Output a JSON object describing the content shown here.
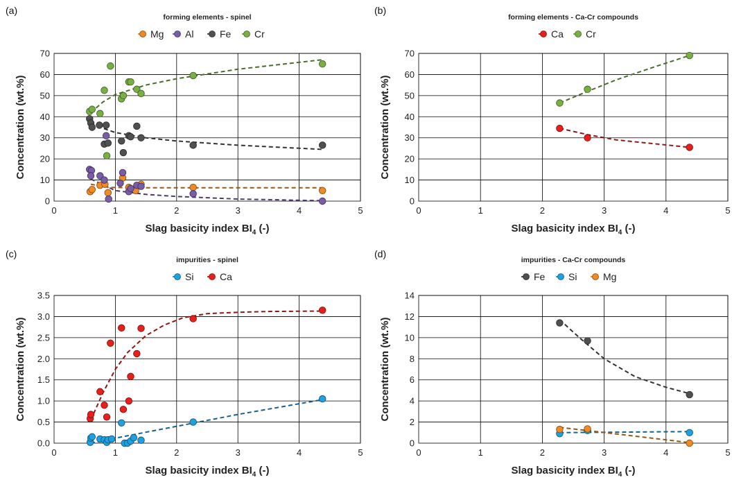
{
  "chart_data": [
    {
      "panel": "(a)",
      "type": "scatter",
      "title": "forming elements - spinel",
      "xlabel": "Slag basicity index BI",
      "xlabel_sub": "4",
      "xlabel_suffix": " (-)",
      "ylabel": "Concentration (wt.%)",
      "xlim": [
        0,
        5
      ],
      "ylim": [
        0,
        70
      ],
      "xticks": [
        "0",
        "1",
        "2",
        "3",
        "4",
        "5"
      ],
      "yticks": [
        "0",
        "10",
        "20",
        "30",
        "40",
        "50",
        "60",
        "70"
      ],
      "grid": true,
      "legend_position": "top",
      "series": [
        {
          "name": "Mg",
          "color": "#f08a24",
          "x": [
            0.59,
            0.62,
            0.75,
            0.83,
            0.88,
            1.12,
            1.22,
            1.25,
            1.33,
            1.42,
            2.27,
            4.38
          ],
          "y": [
            4.5,
            5.5,
            7.5,
            8.0,
            4.0,
            11.0,
            6.5,
            5.5,
            5.0,
            8.0,
            6.5,
            5.0
          ],
          "trend": {
            "x": [
              0.6,
              0.9,
              1.3,
              2.0,
              3.0,
              4.38
            ],
            "y": [
              8.0,
              6.5,
              6.3,
              6.3,
              6.3,
              6.3
            ]
          }
        },
        {
          "name": "Al",
          "color": "#7a5ca8",
          "x": [
            0.58,
            0.61,
            0.6,
            0.75,
            0.82,
            0.85,
            0.89,
            1.08,
            1.12,
            1.22,
            1.25,
            1.35,
            1.42,
            2.27,
            4.38
          ],
          "y": [
            15.0,
            14.5,
            12.0,
            12.0,
            10.0,
            31.0,
            1.0,
            8.5,
            13.5,
            4.5,
            6.0,
            7.5,
            7.0,
            3.5,
            0.0
          ],
          "trend": {
            "x": [
              0.6,
              1.0,
              1.5,
              2.0,
              3.0,
              4.38
            ],
            "y": [
              10.5,
              5.0,
              3.2,
              2.2,
              1.0,
              0.2
            ]
          }
        },
        {
          "name": "Fe",
          "color": "#505050",
          "x": [
            0.58,
            0.6,
            0.62,
            0.74,
            0.82,
            0.85,
            0.88,
            1.1,
            1.13,
            1.22,
            1.25,
            1.35,
            1.42,
            2.27,
            4.38
          ],
          "y": [
            39.0,
            37.0,
            35.0,
            36.0,
            27.0,
            36.0,
            27.5,
            28.5,
            23.0,
            31.0,
            30.5,
            35.5,
            30.0,
            26.5,
            26.5
          ],
          "trend": {
            "x": [
              0.6,
              1.0,
              1.5,
              2.0,
              3.0,
              4.38
            ],
            "y": [
              36.5,
              32.5,
              30.0,
              28.5,
              26.5,
              24.5
            ]
          }
        },
        {
          "name": "Cr",
          "color": "#78b043",
          "x": [
            0.58,
            0.62,
            0.75,
            0.82,
            0.86,
            0.92,
            1.1,
            1.13,
            1.22,
            1.25,
            1.35,
            1.42,
            2.27,
            4.38
          ],
          "y": [
            42.5,
            43.5,
            41.5,
            52.5,
            21.5,
            64.0,
            48.5,
            50.0,
            56.5,
            56.5,
            53.0,
            51.0,
            59.5,
            65.0
          ],
          "trend": {
            "x": [
              0.6,
              0.8,
              1.0,
              1.5,
              2.0,
              3.0,
              4.38
            ],
            "y": [
              42.0,
              47.0,
              50.5,
              55.0,
              58.0,
              62.5,
              67.0
            ]
          }
        }
      ]
    },
    {
      "panel": "(b)",
      "type": "scatter",
      "title": "forming elements - Ca-Cr compounds",
      "xlabel": "Slag basicity index BI",
      "xlabel_sub": "4",
      "xlabel_suffix": " (-)",
      "ylabel": "Concentration (wt.%)",
      "xlim": [
        0,
        5
      ],
      "ylim": [
        0,
        70
      ],
      "xticks": [
        "0",
        "1",
        "2",
        "3",
        "4",
        "5"
      ],
      "yticks": [
        "0",
        "10",
        "20",
        "30",
        "40",
        "50",
        "60",
        "70"
      ],
      "grid": true,
      "legend_position": "top",
      "series": [
        {
          "name": "Ca",
          "color": "#e8201c",
          "x": [
            2.28,
            2.73,
            4.38
          ],
          "y": [
            34.5,
            30.0,
            25.5
          ],
          "trend": {
            "x": [
              2.28,
              2.73,
              3.2,
              3.8,
              4.38
            ],
            "y": [
              34.5,
              31.5,
              29.0,
              27.2,
              25.5
            ]
          }
        },
        {
          "name": "Cr",
          "color": "#78b043",
          "x": [
            2.28,
            2.73,
            4.38
          ],
          "y": [
            46.5,
            53.0,
            69.0
          ],
          "trend": {
            "x": [
              2.28,
              2.73,
              3.2,
              3.8,
              4.38
            ],
            "y": [
              46.5,
              52.0,
              57.5,
              63.5,
              69.0
            ]
          }
        }
      ]
    },
    {
      "panel": "(c)",
      "type": "scatter",
      "title": "impurities - spinel",
      "xlabel": "Slag basicity index BI",
      "xlabel_sub": "4",
      "xlabel_suffix": " (-)",
      "ylabel": "Concentration (wt.%)",
      "xlim": [
        0,
        5
      ],
      "ylim": [
        0,
        3.5
      ],
      "xticks": [
        "0",
        "1",
        "2",
        "3",
        "4",
        "5"
      ],
      "yticks": [
        "0.0",
        "0.5",
        "1.0",
        "1.5",
        "2.0",
        "2.5",
        "3.0",
        "3.5"
      ],
      "grid": true,
      "legend_position": "top",
      "series": [
        {
          "name": "Si",
          "color": "#1fa0e0",
          "x": [
            0.59,
            0.6,
            0.62,
            0.75,
            0.82,
            0.86,
            0.88,
            0.94,
            1.1,
            1.15,
            1.2,
            1.25,
            1.3,
            1.42,
            2.27,
            4.38
          ],
          "y": [
            0.02,
            0.12,
            0.15,
            0.1,
            0.08,
            0.02,
            0.08,
            0.1,
            0.48,
            0.0,
            0.0,
            0.05,
            0.13,
            0.07,
            0.5,
            1.05
          ],
          "trend": {
            "x": [
              0.6,
              1.0,
              1.5,
              2.0,
              3.0,
              4.38
            ],
            "y": [
              0.0,
              0.12,
              0.26,
              0.4,
              0.68,
              1.03
            ]
          }
        },
        {
          "name": "Ca",
          "color": "#e8201c",
          "x": [
            0.59,
            0.6,
            0.75,
            0.82,
            0.86,
            0.92,
            1.1,
            1.13,
            1.22,
            1.25,
            1.35,
            1.42,
            2.27,
            4.38
          ],
          "y": [
            0.58,
            0.68,
            1.22,
            0.9,
            0.62,
            2.37,
            2.73,
            0.8,
            1.0,
            1.58,
            2.12,
            2.72,
            2.95,
            3.15
          ],
          "trend": {
            "x": [
              0.6,
              0.8,
              1.0,
              1.2,
              1.5,
              1.8,
              2.1,
              2.5,
              3.0,
              3.5,
              4.38
            ],
            "y": [
              0.55,
              1.2,
              1.75,
              2.15,
              2.55,
              2.8,
              2.97,
              3.07,
              3.1,
              3.12,
              3.13
            ]
          }
        }
      ]
    },
    {
      "panel": "(d)",
      "type": "scatter",
      "title": "impurities - Ca-Cr compounds",
      "xlabel": "Slag basicity index BI",
      "xlabel_sub": "4",
      "xlabel_suffix": " (-)",
      "ylabel": "Concentration (wt.%)",
      "xlim": [
        0,
        5
      ],
      "ylim": [
        0,
        14
      ],
      "xticks": [
        "0",
        "1",
        "2",
        "3",
        "4",
        "5"
      ],
      "yticks": [
        "0",
        "2",
        "4",
        "6",
        "8",
        "10",
        "12",
        "14"
      ],
      "grid": true,
      "legend_position": "top",
      "series": [
        {
          "name": "Fe",
          "color": "#505050",
          "x": [
            2.28,
            2.73,
            4.38
          ],
          "y": [
            11.4,
            9.7,
            4.6
          ],
          "trend": {
            "x": [
              2.28,
              2.6,
              3.0,
              3.5,
              4.0,
              4.38
            ],
            "y": [
              11.7,
              10.0,
              8.0,
              6.3,
              5.3,
              4.7
            ]
          }
        },
        {
          "name": "Si",
          "color": "#1fa0e0",
          "x": [
            2.28,
            2.73,
            4.38
          ],
          "y": [
            0.9,
            1.2,
            1.0
          ],
          "trend": {
            "x": [
              2.28,
              4.38
            ],
            "y": [
              1.0,
              1.1
            ]
          }
        },
        {
          "name": "Mg",
          "color": "#f08a24",
          "x": [
            2.28,
            2.73,
            4.38
          ],
          "y": [
            1.3,
            1.35,
            0.0
          ],
          "trend": {
            "x": [
              2.28,
              3.3,
              4.38
            ],
            "y": [
              1.5,
              0.8,
              0.05
            ]
          }
        }
      ]
    }
  ]
}
